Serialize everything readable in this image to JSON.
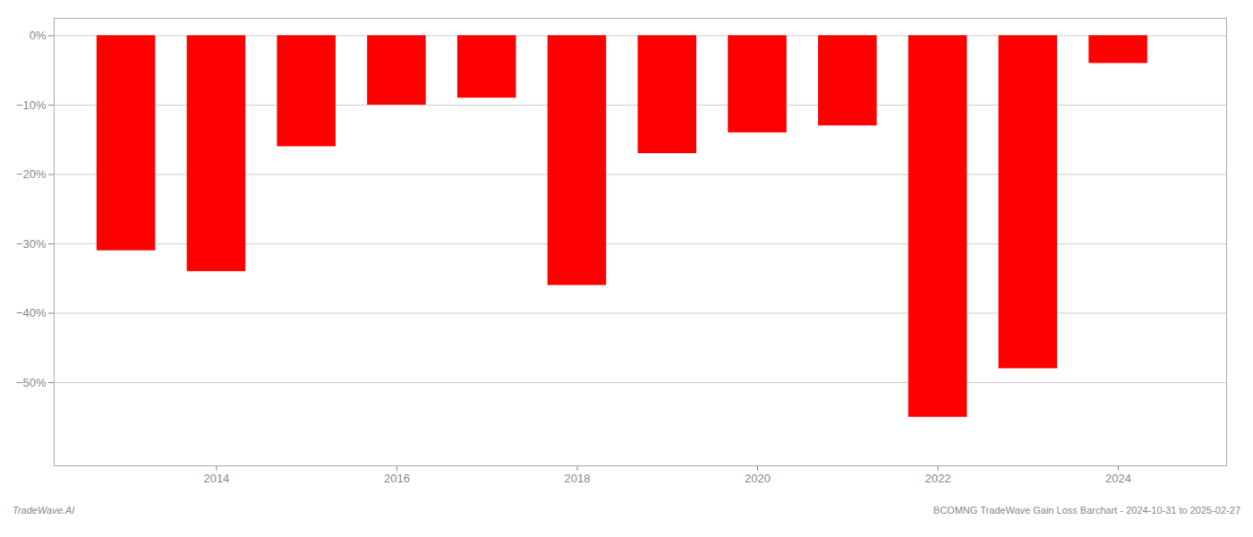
{
  "chart_data": {
    "type": "bar",
    "x": [
      2013,
      2014,
      2015,
      2016,
      2017,
      2018,
      2019,
      2020,
      2021,
      2022,
      2023,
      2024
    ],
    "values": [
      -0.31,
      -0.34,
      -0.16,
      -0.1,
      -0.09,
      -0.36,
      -0.17,
      -0.14,
      -0.13,
      -0.55,
      -0.48,
      -0.04
    ],
    "color": "#ff0000",
    "xlim": [
      2012.2,
      2025.2
    ],
    "xticks": [
      2014,
      2016,
      2018,
      2020,
      2022,
      2024
    ],
    "ylim": [
      -0.62,
      0.025
    ],
    "yticks": [
      {
        "value": 0.0,
        "label": "0%"
      },
      {
        "value": -0.1,
        "label": "−10%"
      },
      {
        "value": -0.2,
        "label": "−20%"
      },
      {
        "value": -0.3,
        "label": "−30%"
      },
      {
        "value": -0.4,
        "label": "−40%"
      },
      {
        "value": -0.5,
        "label": "−50%"
      }
    ],
    "grid": true,
    "annotations": [
      "TradeWave.AI",
      "BCOMNG TradeWave Gain Loss Barchart - 2024-10-31 to 2025-02-27"
    ]
  }
}
